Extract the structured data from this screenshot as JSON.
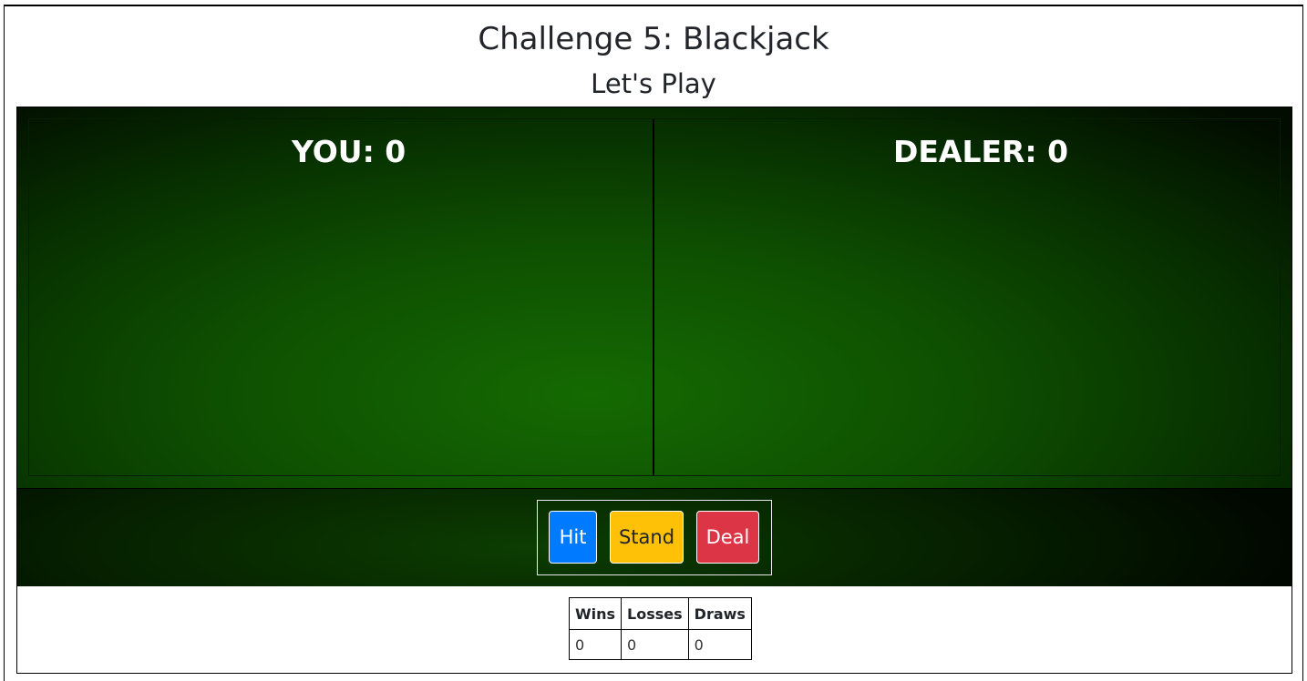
{
  "header": {
    "title": "Challenge 5: Blackjack",
    "subtitle": "Let's Play"
  },
  "table": {
    "player_label": "YOU: 0",
    "dealer_label": "DEALER: 0",
    "felt_color": "#0e4f01"
  },
  "controls": {
    "hit_label": "Hit",
    "stand_label": "Stand",
    "deal_label": "Deal",
    "hit_color": "#007bff",
    "stand_color": "#ffc107",
    "deal_color": "#dc3545"
  },
  "scoreboard": {
    "headers": [
      "Wins",
      "Losses",
      "Draws"
    ],
    "values": [
      "0",
      "0",
      "0"
    ]
  }
}
